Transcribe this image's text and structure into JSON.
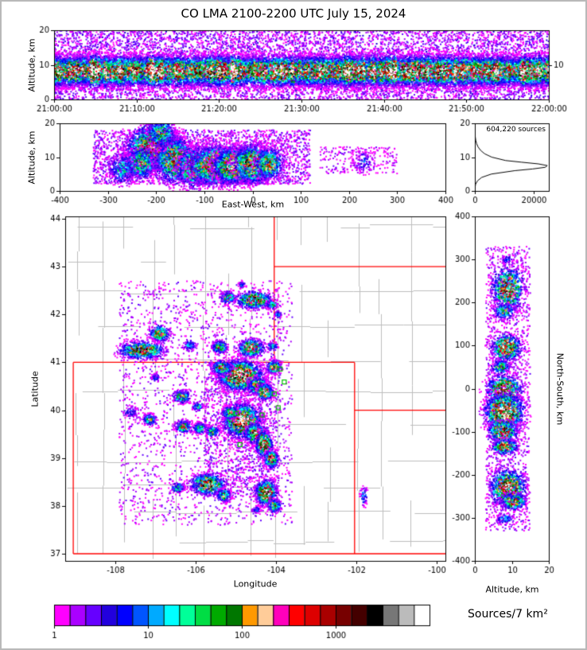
{
  "title": "CO LMA 2100-2200 UTC July 15, 2024",
  "palette": [
    "#ff00ff",
    "#aa00ff",
    "#6600ff",
    "#2200dd",
    "#0000ff",
    "#0055ff",
    "#00aaff",
    "#00ffff",
    "#00ff99",
    "#00dd44",
    "#00aa00",
    "#007700",
    "#ff9900",
    "#ffcc99",
    "#ff00bb",
    "#ff0000",
    "#dd0000",
    "#aa0000",
    "#770000",
    "#440000",
    "#000000",
    "#777777",
    "#bbbbbb",
    "#ffffff"
  ],
  "colors": {
    "state_border": "#ff0000",
    "county_line": "#bdbdbd",
    "station_marker": "#00c000",
    "frame": "#000000"
  },
  "chart_data": [
    {
      "id": "time_height",
      "type": "scatter-density",
      "xlabel": "",
      "ylabel": "Altitude, km",
      "x_range": [
        0,
        3600
      ],
      "x_ticks": [
        0,
        600,
        1200,
        1800,
        2400,
        3000,
        3600
      ],
      "x_tick_labels": [
        "21:00:00",
        "21:10:00",
        "21:20:00",
        "21:30:00",
        "21:40:00",
        "21:50:00",
        "22:00:00"
      ],
      "y_range": [
        0,
        20
      ],
      "y_ticks": [
        0,
        10,
        20
      ],
      "y_tick_labels": [
        "0",
        "10",
        "20"
      ],
      "right_y_ticks": [
        10
      ],
      "right_y_tick_labels": [
        "10"
      ],
      "band": {
        "center_alt_km": 8.2,
        "sd_km": 2.4,
        "n_dense": 26000,
        "n_sparse": 8000,
        "columns": 140
      }
    },
    {
      "id": "east_west",
      "type": "scatter-density",
      "xlabel": "East-West, km",
      "ylabel": "Altitude, km",
      "x_range": [
        -400,
        400
      ],
      "x_ticks": [
        -400,
        -300,
        -200,
        -100,
        0,
        100,
        200,
        300,
        400
      ],
      "x_tick_labels": [
        "-400",
        "-300",
        "-200",
        "-100",
        "0",
        "100",
        "200",
        "300",
        "400"
      ],
      "y_range": [
        0,
        20
      ],
      "y_ticks": [
        0,
        10,
        20
      ],
      "y_tick_labels": [
        "0",
        "10",
        "20"
      ],
      "blobs": [
        [
          -205,
          13,
          28,
          3.2,
          2400,
          0.8
        ],
        [
          -232,
          8,
          18,
          2.5,
          700,
          0.5
        ],
        [
          -160,
          9,
          22,
          3.5,
          1700,
          0.7
        ],
        [
          -120,
          7,
          18,
          3,
          1200,
          0.75
        ],
        [
          -70,
          7.5,
          30,
          2.8,
          2800,
          0.95
        ],
        [
          -35,
          7.5,
          22,
          2.5,
          3000,
          1.05
        ],
        [
          0,
          8,
          20,
          2.8,
          1500,
          0.8
        ],
        [
          35,
          8,
          15,
          2.5,
          650,
          0.6
        ],
        [
          -270,
          6.5,
          15,
          2.5,
          350,
          0.35
        ],
        [
          230,
          9,
          12,
          2,
          130,
          0.22
        ],
        [
          -190,
          17,
          15,
          2.2,
          500,
          0.55
        ]
      ],
      "halos": [
        [
          -330,
          120,
          2,
          18,
          2600,
          0.12
        ],
        [
          140,
          300,
          5,
          13,
          220,
          0.09
        ],
        [
          -120,
          30,
          2,
          6,
          500,
          0.15
        ]
      ]
    },
    {
      "id": "altitude_histogram",
      "type": "line",
      "annotation": "604,220 sources",
      "x_range": [
        0,
        25000
      ],
      "x_ticks": [
        0,
        20000
      ],
      "x_tick_labels": [
        "0",
        "20000"
      ],
      "y_range": [
        0,
        20
      ],
      "y_ticks": [
        0,
        10,
        20
      ],
      "y_tick_labels": [
        "0",
        "10",
        "20"
      ],
      "profile_alt_vs_count": [
        [
          0,
          0
        ],
        [
          1,
          60
        ],
        [
          2,
          260
        ],
        [
          3,
          900
        ],
        [
          4,
          2300
        ],
        [
          5,
          5600
        ],
        [
          6,
          13500
        ],
        [
          6.5,
          19500
        ],
        [
          7,
          23800
        ],
        [
          7.5,
          24500
        ],
        [
          8,
          21500
        ],
        [
          8.5,
          15800
        ],
        [
          9,
          10400
        ],
        [
          10,
          5700
        ],
        [
          11,
          3300
        ],
        [
          12,
          1950
        ],
        [
          13,
          1100
        ],
        [
          14,
          600
        ],
        [
          15,
          300
        ],
        [
          16,
          150
        ],
        [
          17,
          70
        ],
        [
          18,
          30
        ],
        [
          19,
          10
        ],
        [
          20,
          0
        ]
      ]
    },
    {
      "id": "map",
      "type": "scatter-density",
      "xlabel": "Longitude",
      "ylabel": "Latitude",
      "x_range": [
        -109.25,
        -99.79
      ],
      "x_ticks": [
        -108,
        -106,
        -104,
        -102,
        -100
      ],
      "x_tick_labels": [
        "-108",
        "-106",
        "-104",
        "-102",
        "-100"
      ],
      "y_range": [
        36.85,
        44.05
      ],
      "y_ticks": [
        37,
        38,
        39,
        40,
        41,
        42,
        43,
        44
      ],
      "y_tick_labels": [
        "37",
        "38",
        "39",
        "40",
        "41",
        "42",
        "43",
        "44"
      ],
      "state_borders_deg": [
        [
          -109.05,
          37.0,
          -109.05,
          41.0
        ],
        [
          -109.05,
          41.0,
          -102.05,
          41.0
        ],
        [
          -102.05,
          41.0,
          -102.05,
          37.0
        ],
        [
          -109.05,
          37.0,
          -99.79,
          37.0
        ],
        [
          -104.05,
          41.0,
          -104.05,
          44.05
        ],
        [
          -104.05,
          43.0,
          -99.79,
          43.0
        ],
        [
          -102.05,
          40.0,
          -99.79,
          40.0
        ]
      ],
      "stations_lonlat": [
        [
          -103.9,
          40.86
        ],
        [
          -103.8,
          40.59
        ],
        [
          -104.05,
          40.34
        ],
        [
          -105.0,
          39.93
        ],
        [
          -104.9,
          39.28
        ],
        [
          -104.35,
          39.9
        ],
        [
          -103.95,
          40.05
        ]
      ],
      "blobs": [
        [
          -105.2,
          42.35,
          0.1,
          0.07,
          220,
          0.5
        ],
        [
          -104.55,
          42.3,
          0.22,
          0.09,
          700,
          0.8
        ],
        [
          -104.1,
          42.2,
          0.08,
          0.05,
          120,
          0.4
        ],
        [
          -104.85,
          42.62,
          0.05,
          0.04,
          50,
          0.3
        ],
        [
          -103.95,
          42.0,
          0.05,
          0.04,
          60,
          0.35
        ],
        [
          -106.9,
          41.6,
          0.13,
          0.09,
          280,
          0.6
        ],
        [
          -107.35,
          41.25,
          0.28,
          0.09,
          750,
          0.8
        ],
        [
          -106.15,
          41.35,
          0.08,
          0.06,
          100,
          0.35
        ],
        [
          -105.4,
          41.32,
          0.1,
          0.07,
          220,
          0.55
        ],
        [
          -104.62,
          41.3,
          0.16,
          0.09,
          550,
          0.85
        ],
        [
          -104.1,
          41.33,
          0.07,
          0.05,
          90,
          0.4
        ],
        [
          -104.9,
          40.72,
          0.26,
          0.15,
          2400,
          1.05
        ],
        [
          -105.35,
          40.88,
          0.13,
          0.08,
          350,
          0.6
        ],
        [
          -104.05,
          40.9,
          0.09,
          0.07,
          260,
          0.7
        ],
        [
          -104.45,
          40.5,
          0.13,
          0.09,
          450,
          0.75
        ],
        [
          -104.28,
          40.38,
          0.1,
          0.08,
          500,
          0.9
        ],
        [
          -106.35,
          40.28,
          0.11,
          0.07,
          260,
          0.6
        ],
        [
          -105.95,
          40.08,
          0.07,
          0.05,
          110,
          0.4
        ],
        [
          -107.0,
          40.68,
          0.06,
          0.05,
          60,
          0.25
        ],
        [
          -107.62,
          39.95,
          0.12,
          0.08,
          90,
          0.2
        ],
        [
          -107.15,
          39.8,
          0.09,
          0.06,
          180,
          0.5
        ],
        [
          -106.3,
          39.65,
          0.11,
          0.07,
          240,
          0.55
        ],
        [
          -105.9,
          39.62,
          0.09,
          0.06,
          190,
          0.5
        ],
        [
          -105.58,
          39.55,
          0.09,
          0.06,
          190,
          0.5
        ],
        [
          -104.85,
          39.78,
          0.22,
          0.17,
          2000,
          1.05
        ],
        [
          -105.15,
          39.95,
          0.1,
          0.07,
          280,
          0.6
        ],
        [
          -104.5,
          39.5,
          0.13,
          0.11,
          600,
          0.85
        ],
        [
          -104.3,
          39.28,
          0.1,
          0.13,
          600,
          0.9
        ],
        [
          -104.12,
          38.98,
          0.09,
          0.09,
          420,
          0.85
        ],
        [
          -105.7,
          38.45,
          0.22,
          0.11,
          850,
          0.85
        ],
        [
          -106.45,
          38.38,
          0.09,
          0.06,
          140,
          0.4
        ],
        [
          -105.3,
          38.22,
          0.09,
          0.07,
          230,
          0.6
        ],
        [
          -104.25,
          38.28,
          0.13,
          0.13,
          800,
          0.95
        ],
        [
          -104.05,
          38.0,
          0.09,
          0.07,
          260,
          0.6
        ],
        [
          -104.5,
          37.92,
          0.06,
          0.04,
          60,
          0.3
        ],
        [
          -101.82,
          38.2,
          0.05,
          0.1,
          70,
          0.35
        ]
      ],
      "halos": [
        [
          -107.9,
          -103.6,
          37.6,
          42.7,
          2200,
          0.1
        ],
        [
          -105.8,
          -103.9,
          38.2,
          41.0,
          1200,
          0.12
        ]
      ]
    },
    {
      "id": "north_south",
      "type": "scatter-density",
      "xlabel": "Altitude, km",
      "ylabel": "North-South, km",
      "x_range": [
        0,
        20
      ],
      "x_ticks": [
        0,
        10,
        20
      ],
      "x_tick_labels": [
        "0",
        "10",
        "20"
      ],
      "y_range": [
        -400,
        400
      ],
      "y_ticks": [
        400,
        300,
        200,
        100,
        0,
        -100,
        -200,
        -300,
        -400
      ],
      "y_tick_labels": [
        "400",
        "300",
        "200",
        "100",
        "0",
        "-100",
        "-200",
        "-300",
        "-400"
      ],
      "blobs": [
        [
          9,
          232,
          2.2,
          26,
          850,
          0.8
        ],
        [
          8,
          180,
          1.6,
          10,
          220,
          0.5
        ],
        [
          8.5,
          95,
          2.0,
          16,
          650,
          0.85
        ],
        [
          7,
          50,
          1.4,
          9,
          220,
          0.5
        ],
        [
          8,
          -5,
          2.4,
          18,
          850,
          0.95
        ],
        [
          8,
          -55,
          2.6,
          22,
          1400,
          1.05
        ],
        [
          7.5,
          -100,
          2.0,
          13,
          550,
          0.85
        ],
        [
          8,
          -135,
          1.8,
          9,
          380,
          0.8
        ],
        [
          9,
          -230,
          2.4,
          22,
          1100,
          0.9
        ],
        [
          10.5,
          -262,
          1.8,
          10,
          380,
          0.7
        ],
        [
          8,
          -302,
          1.3,
          7,
          90,
          0.3
        ],
        [
          9,
          298,
          1.1,
          7,
          60,
          0.25
        ]
      ],
      "halos": [
        [
          3,
          15,
          -330,
          330,
          1500,
          0.1
        ]
      ]
    },
    {
      "id": "colorbar",
      "type": "colorbar",
      "label": "Sources/7 km²",
      "tick_labels": [
        "1",
        "10",
        "100",
        "1000"
      ],
      "n_segments": 24,
      "range_log10": [
        0,
        4
      ]
    }
  ]
}
